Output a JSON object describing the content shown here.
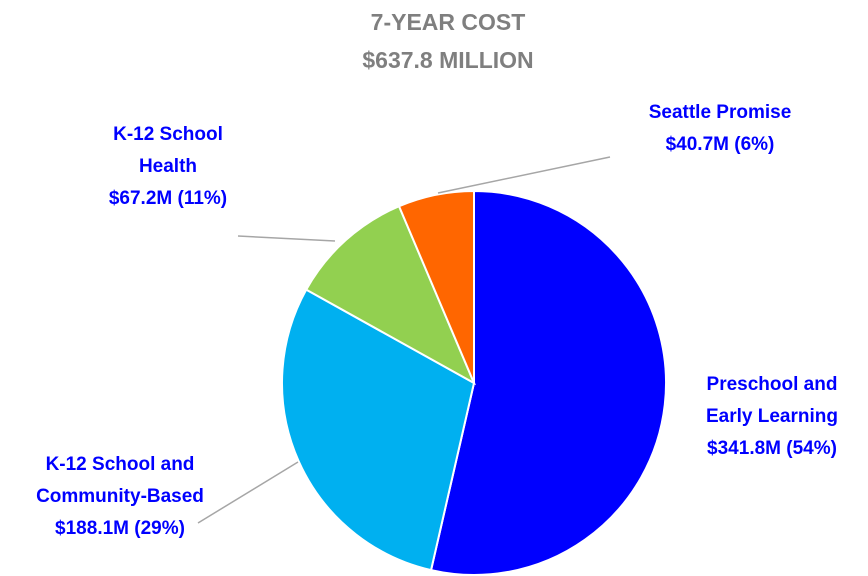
{
  "chart_data": {
    "type": "pie",
    "title": "7-YEAR COST",
    "subtitle": "$637.8 MILLION",
    "slices": [
      {
        "label_lines": [
          "Preschool and",
          "Early Learning",
          "$341.8M (54%)"
        ],
        "value": 341.8,
        "percent": 54,
        "color": "#0000ff",
        "label_color": "#0000ff"
      },
      {
        "label_lines": [
          "K-12 School and",
          "Community-Based",
          "$188.1M (29%)"
        ],
        "value": 188.1,
        "percent": 29,
        "color": "#00b0f0",
        "label_color": "#0000ff"
      },
      {
        "label_lines": [
          "K-12 School",
          "Health",
          "$67.2M (11%)"
        ],
        "value": 67.2,
        "percent": 11,
        "color": "#92d050",
        "label_color": "#0000ff"
      },
      {
        "label_lines": [
          "Seattle Promise",
          "$40.7M (6%)"
        ],
        "value": 40.7,
        "percent": 6,
        "color": "#ff6600",
        "label_color": "#0000ff"
      }
    ],
    "legend": "none"
  }
}
